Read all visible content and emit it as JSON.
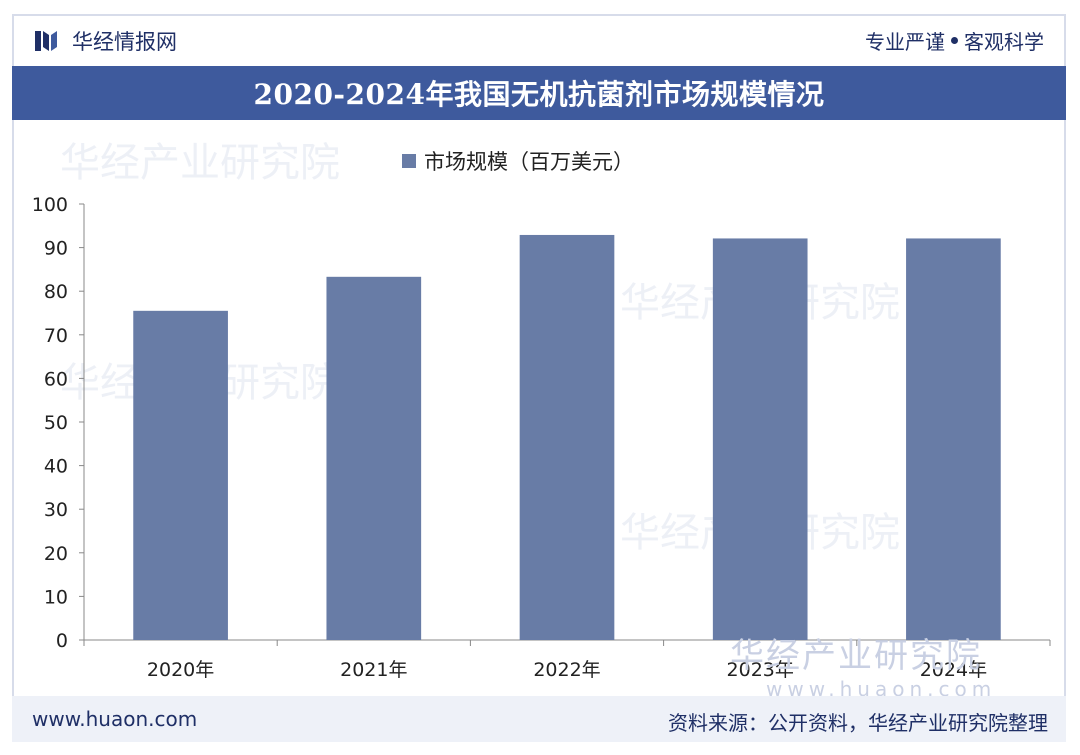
{
  "header": {
    "brand_name": "华经情报网",
    "slogan_left": "专业严谨",
    "slogan_right": "客观科学"
  },
  "title": "2020-2024年我国无机抗菌剂市场规模情况",
  "footer": {
    "website": "www.huaon.com",
    "source": "资料来源：公开资料，华经产业研究院整理"
  },
  "watermark": {
    "name": "华经产业研究院",
    "url": "www.huaon.com"
  },
  "colors": {
    "bar": "#687ca6",
    "title_bg": "#3e5a9d",
    "text": "#1f2f66"
  },
  "chart_data": {
    "type": "bar",
    "categories": [
      "2020年",
      "2021年",
      "2022年",
      "2023年",
      "2024年"
    ],
    "series": [
      {
        "name": "市场规模（百万美元）",
        "values": [
          75.5,
          83.3,
          92.9,
          92.1,
          92.1
        ]
      }
    ],
    "ylim": [
      0,
      100
    ],
    "yticks": [
      0,
      10,
      20,
      30,
      40,
      50,
      60,
      70,
      80,
      90,
      100
    ],
    "legend": "top-center",
    "grid": false
  }
}
